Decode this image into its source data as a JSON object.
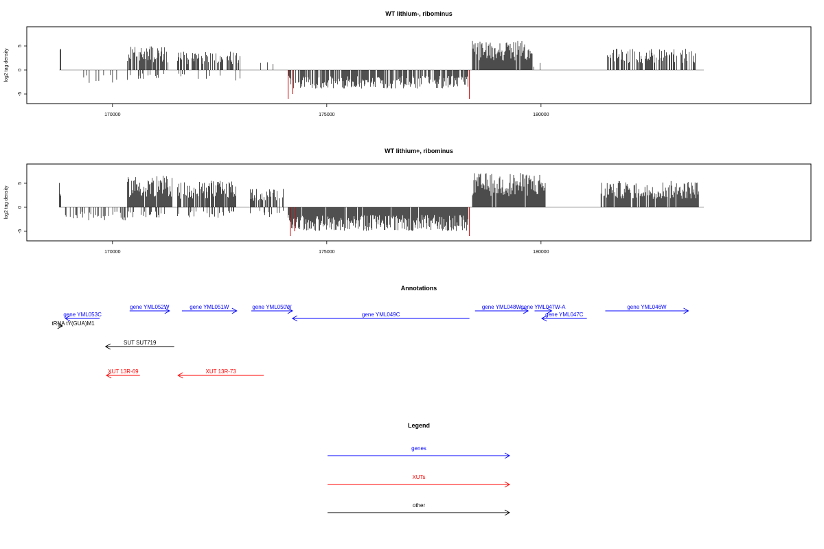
{
  "colors": {
    "genes": "#0000ff",
    "xuts": "#ff0000",
    "other": "#000000",
    "bar": "#000000",
    "highlight": "#cc0000"
  },
  "chart_data": [
    {
      "type": "bar",
      "title": "WT lithium-, ribominus",
      "xlabel": "",
      "ylabel": "log2 tag density",
      "xlim": [
        168000,
        186300
      ],
      "ylim": [
        -7,
        9
      ],
      "x_ticks": [
        170000,
        175000,
        180000
      ],
      "x_tick_labels": [
        "170000",
        "175000",
        "180000"
      ],
      "y_ticks": [
        -5,
        0,
        5
      ],
      "y_tick_labels": [
        "-5",
        "0",
        "5"
      ],
      "baseline": {
        "from": 168760,
        "to": 183800
      },
      "segments": [
        {
          "from": 168760,
          "to": 168800,
          "value": 5.5,
          "density": 0.9
        },
        {
          "from": 169200,
          "to": 170100,
          "value": -2.5,
          "density": 0.15
        },
        {
          "from": 170350,
          "to": 171300,
          "value": 4.5,
          "density": 0.85
        },
        {
          "from": 170350,
          "to": 171300,
          "value": -2.0,
          "density": 0.2
        },
        {
          "from": 171500,
          "to": 173000,
          "value": 3.5,
          "density": 0.45
        },
        {
          "from": 171500,
          "to": 173000,
          "value": -2.0,
          "density": 0.1
        },
        {
          "from": 173300,
          "to": 173900,
          "value": 2.0,
          "density": 0.2
        },
        {
          "from": 174100,
          "to": 178300,
          "value": -3.5,
          "density": 0.75
        },
        {
          "from": 178400,
          "to": 179800,
          "value": 5.5,
          "density": 0.95
        },
        {
          "from": 179800,
          "to": 180000,
          "value": 1.5,
          "density": 0.4
        },
        {
          "from": 181500,
          "to": 183600,
          "value": 4.0,
          "density": 0.6
        }
      ],
      "highlights": [
        {
          "x": 174100,
          "value": -6.0
        },
        {
          "x": 174200,
          "value": -5.0
        },
        {
          "x": 178330,
          "value": -6.0
        }
      ]
    },
    {
      "type": "bar",
      "title": "WT lithium+, ribominus",
      "xlabel": "",
      "ylabel": "log2 tag density",
      "xlim": [
        168000,
        186300
      ],
      "ylim": [
        -7,
        9
      ],
      "x_ticks": [
        170000,
        175000,
        180000
      ],
      "x_tick_labels": [
        "170000",
        "175000",
        "180000"
      ],
      "y_ticks": [
        -5,
        0,
        5
      ],
      "y_tick_labels": [
        "-5",
        "0",
        "5"
      ],
      "baseline": {
        "from": 168760,
        "to": 183800
      },
      "segments": [
        {
          "from": 168760,
          "to": 168800,
          "value": 5.5,
          "density": 0.9
        },
        {
          "from": 168900,
          "to": 170300,
          "value": -2.5,
          "density": 0.35
        },
        {
          "from": 170350,
          "to": 171400,
          "value": 6.0,
          "density": 0.95
        },
        {
          "from": 170350,
          "to": 171400,
          "value": -2.0,
          "density": 0.3
        },
        {
          "from": 171500,
          "to": 172900,
          "value": 5.0,
          "density": 0.8
        },
        {
          "from": 171500,
          "to": 172900,
          "value": -2.0,
          "density": 0.25
        },
        {
          "from": 173200,
          "to": 174000,
          "value": 3.5,
          "density": 0.6
        },
        {
          "from": 173200,
          "to": 174000,
          "value": -2.0,
          "density": 0.3
        },
        {
          "from": 174100,
          "to": 178300,
          "value": -4.5,
          "density": 0.95
        },
        {
          "from": 178400,
          "to": 180100,
          "value": 6.5,
          "density": 0.97
        },
        {
          "from": 181400,
          "to": 183700,
          "value": 5.0,
          "density": 0.85
        }
      ],
      "highlights": [
        {
          "x": 174150,
          "value": -6.0
        },
        {
          "x": 174250,
          "value": -5.0
        },
        {
          "x": 178330,
          "value": -6.0
        }
      ]
    }
  ],
  "annotations": {
    "title": "Annotations",
    "items": [
      {
        "label": "gene YML053C",
        "from": 169700,
        "to": 168900,
        "row": 1,
        "category": "genes"
      },
      {
        "label": "tRNA tY(GUA)M1",
        "from": 168730,
        "to": 168830,
        "row": 2,
        "category": "other"
      },
      {
        "label": "gene YML052W",
        "from": 170400,
        "to": 171330,
        "row": 0,
        "category": "genes"
      },
      {
        "label": "gene YML051W",
        "from": 171620,
        "to": 172900,
        "row": 0,
        "category": "genes"
      },
      {
        "label": "gene YML050W",
        "from": 173240,
        "to": 174200,
        "row": 0,
        "category": "genes"
      },
      {
        "label": "gene YML049C",
        "from": 178330,
        "to": 174200,
        "row": 1,
        "category": "genes"
      },
      {
        "label": "gene YML048W",
        "from": 178460,
        "to": 179700,
        "row": 0,
        "category": "genes"
      },
      {
        "label": "gene YML047W-A",
        "from": 179850,
        "to": 180250,
        "row": 0,
        "category": "genes"
      },
      {
        "label": "gene YML047C",
        "from": 181070,
        "to": 180020,
        "row": 1,
        "category": "genes"
      },
      {
        "label": "gene YML046W",
        "from": 181500,
        "to": 183440,
        "row": 0,
        "category": "genes"
      },
      {
        "label": "SUT SUT719",
        "from": 171440,
        "to": 169840,
        "row": 4,
        "category": "other"
      },
      {
        "label": "XUT 13R-69",
        "from": 170640,
        "to": 169860,
        "row": 6,
        "category": "xuts"
      },
      {
        "label": "XUT 13R-73",
        "from": 173530,
        "to": 171530,
        "row": 6,
        "category": "xuts"
      }
    ]
  },
  "legend": {
    "title": "Legend",
    "items": [
      {
        "label": "genes",
        "category": "genes"
      },
      {
        "label": "XUTs",
        "category": "xuts"
      },
      {
        "label": "other",
        "category": "other"
      }
    ]
  }
}
